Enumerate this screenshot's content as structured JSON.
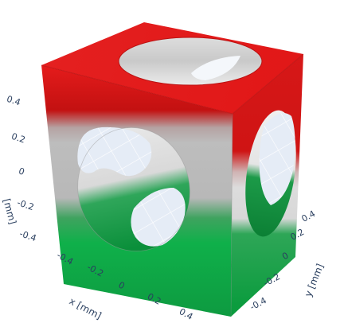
{
  "axes": {
    "z": {
      "title": "[mm]",
      "ticks": [
        "0.4",
        "0.2",
        "0",
        "-0.2",
        "-0.4"
      ]
    },
    "x": {
      "title": "x [mm]",
      "ticks": [
        "-0.4",
        "-0.2",
        "0",
        "0.2",
        "0.4"
      ]
    },
    "y": {
      "title": "y [mm]",
      "ticks": [
        "0.4",
        "0.2",
        "0",
        "-0.2",
        "-0.4"
      ]
    }
  },
  "colors": {
    "top_band": "#e31b1b",
    "middle_band": "#c8c8c8",
    "bottom_band": "#0fb04a",
    "hole_interior": "#e5ecf6"
  }
}
